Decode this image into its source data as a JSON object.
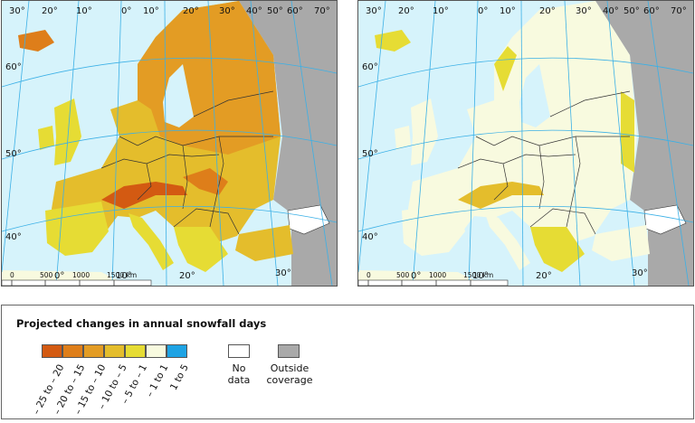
{
  "colors": {
    "sea": "#d6f3fb",
    "outside": "#a9a9a9",
    "no_data": "#ffffff",
    "graticule": "#3bb0e6",
    "border": "#333333"
  },
  "legend": {
    "title": "Projected changes in annual snowfall days",
    "classes": [
      {
        "label": "– 25 to – 20",
        "color": "#d35a12"
      },
      {
        "label": "– 20 to – 15",
        "color": "#de7e1a"
      },
      {
        "label": "– 15 to – 10",
        "color": "#e39c24"
      },
      {
        "label": "– 10 to – 5",
        "color": "#e4bd2c"
      },
      {
        "label": "– 5 to – 1",
        "color": "#e6dc34"
      },
      {
        "label": "– 1 to 1",
        "color": "#f8fadf"
      },
      {
        "label": "1 to 5",
        "color": "#1ea3e4"
      }
    ],
    "no_data_label": [
      "No",
      "data"
    ],
    "outside_label": [
      "Outside",
      "coverage"
    ]
  },
  "maps": [
    {
      "id": "left",
      "lon_labels": [
        "30°",
        "20°",
        "10°",
        "0°",
        "10°",
        "20°",
        "30°",
        "40°",
        "50°",
        "60°",
        "70°"
      ],
      "lat_labels": [
        "60°",
        "50°",
        "40°"
      ],
      "bottom_lon_labels": [
        "0°",
        "10°",
        "20°",
        "30°"
      ],
      "scale_labels": [
        "0",
        "500",
        "1000",
        "1500 km"
      ]
    },
    {
      "id": "right",
      "lon_labels": [
        "30°",
        "20°",
        "10°",
        "0°",
        "10°",
        "20°",
        "30°",
        "40°",
        "50°",
        "60°",
        "70°"
      ],
      "lat_labels": [
        "60°",
        "50°",
        "40°"
      ],
      "bottom_lon_labels": [
        "0°",
        "10°",
        "20°",
        "30°"
      ],
      "scale_labels": [
        "0",
        "500",
        "1000",
        "1500 km"
      ]
    }
  ]
}
